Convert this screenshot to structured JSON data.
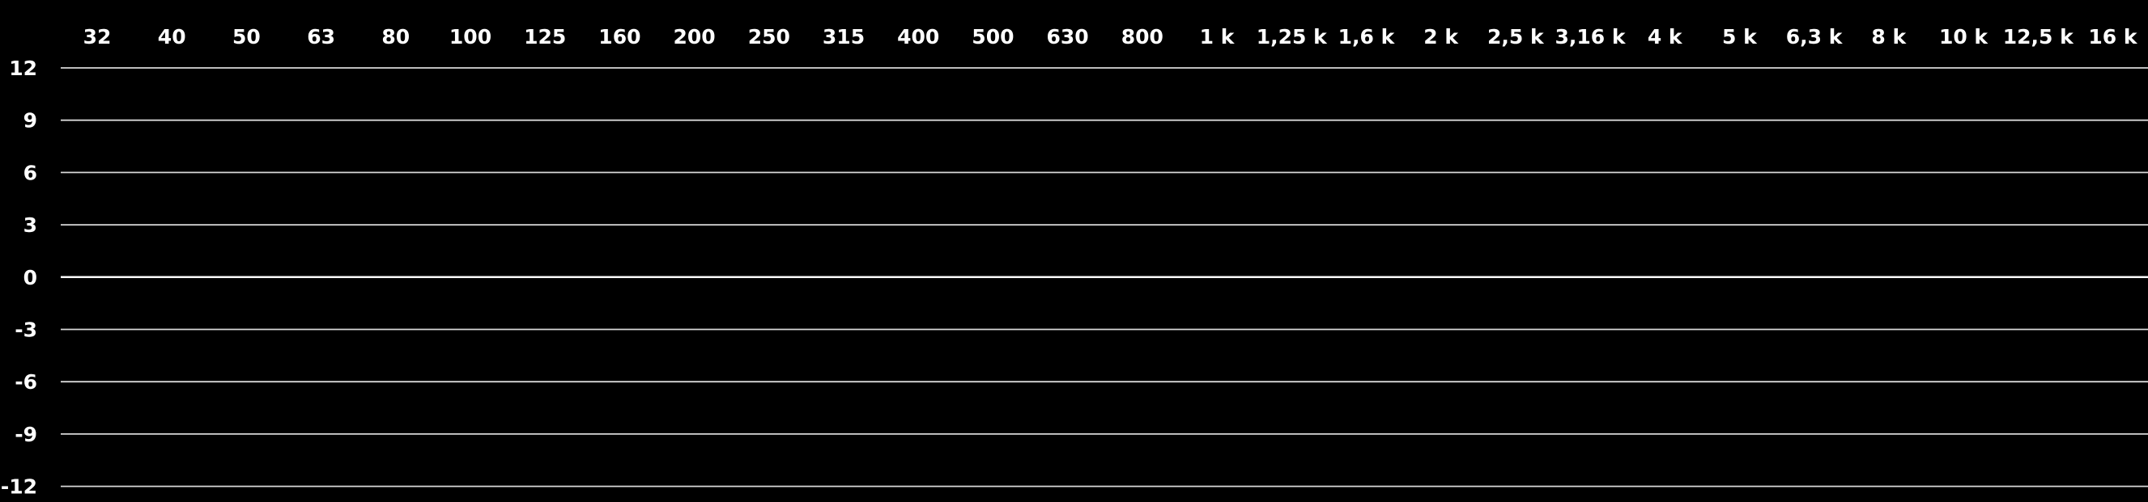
{
  "equalizer": {
    "colors": {
      "background": "#000000",
      "grid": "#d8d8d8",
      "zero_line": "#ffffff",
      "text": "#ffffff"
    },
    "frequency_bands": [
      "32",
      "40",
      "50",
      "63",
      "80",
      "100",
      "125",
      "160",
      "200",
      "250",
      "315",
      "400",
      "500",
      "630",
      "800",
      "1 k",
      "1,25 k",
      "1,6 k",
      "2 k",
      "2,5 k",
      "3,16 k",
      "4 k",
      "5 k",
      "6,3 k",
      "8 k",
      "10 k",
      "12,5 k",
      "16 k"
    ],
    "gain_scale": [
      "12",
      "9",
      "6",
      "3",
      "0",
      "-3",
      "-6",
      "-9",
      "-12"
    ]
  }
}
